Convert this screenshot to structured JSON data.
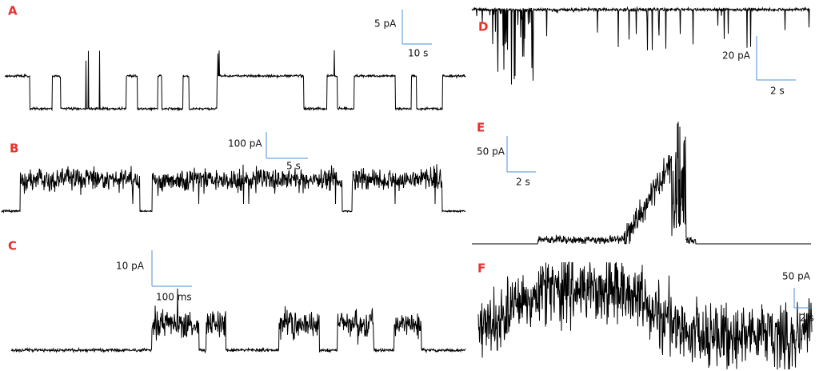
{
  "panels": [
    {
      "label": "A",
      "scale_y": "5 pA",
      "scale_x": "10 s"
    },
    {
      "label": "B",
      "scale_y": "100 pA",
      "scale_x": "5 s"
    },
    {
      "label": "C",
      "scale_y": "10 pA",
      "scale_x": "100 ms"
    },
    {
      "label": "D",
      "scale_y": "20 pA",
      "scale_x": "2 s"
    },
    {
      "label": "E",
      "scale_y": "50 pA",
      "scale_x": "2 s"
    },
    {
      "label": "F",
      "scale_y": "50 pA",
      "scale_x": "2 s"
    }
  ]
}
